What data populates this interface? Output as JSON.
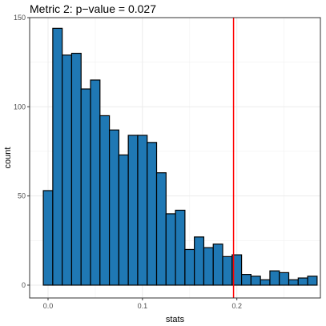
{
  "chart_data": {
    "type": "bar",
    "title": "Metric 2: p−value = 0.027",
    "xlabel": "stats",
    "ylabel": "count",
    "bin_width": 0.01,
    "bin_start": -0.005,
    "values": [
      53,
      144,
      129,
      130,
      110,
      115,
      95,
      87,
      73,
      84,
      84,
      80,
      63,
      40,
      42,
      20,
      27,
      21,
      23,
      16,
      17,
      6,
      5,
      3,
      8,
      7,
      3,
      4,
      5
    ],
    "xlim": [
      -0.0195,
      0.2885
    ],
    "ylim": [
      -7.2,
      150
    ],
    "x_ticks": [
      0.0,
      0.1,
      0.2
    ],
    "x_tick_labels": [
      "0.0",
      "0.1",
      "0.2"
    ],
    "y_ticks": [
      0,
      50,
      100,
      150
    ],
    "y_tick_labels": [
      "0",
      "50",
      "100",
      "150"
    ],
    "x_minor_ticks": [
      0.05,
      0.15,
      0.25
    ],
    "y_minor_ticks": [
      25,
      75,
      125
    ],
    "grid": true,
    "bar_color": "#1F78B4",
    "bar_edge_color": "#000000",
    "vline": {
      "x": 0.1965,
      "color": "#FF0000"
    }
  }
}
